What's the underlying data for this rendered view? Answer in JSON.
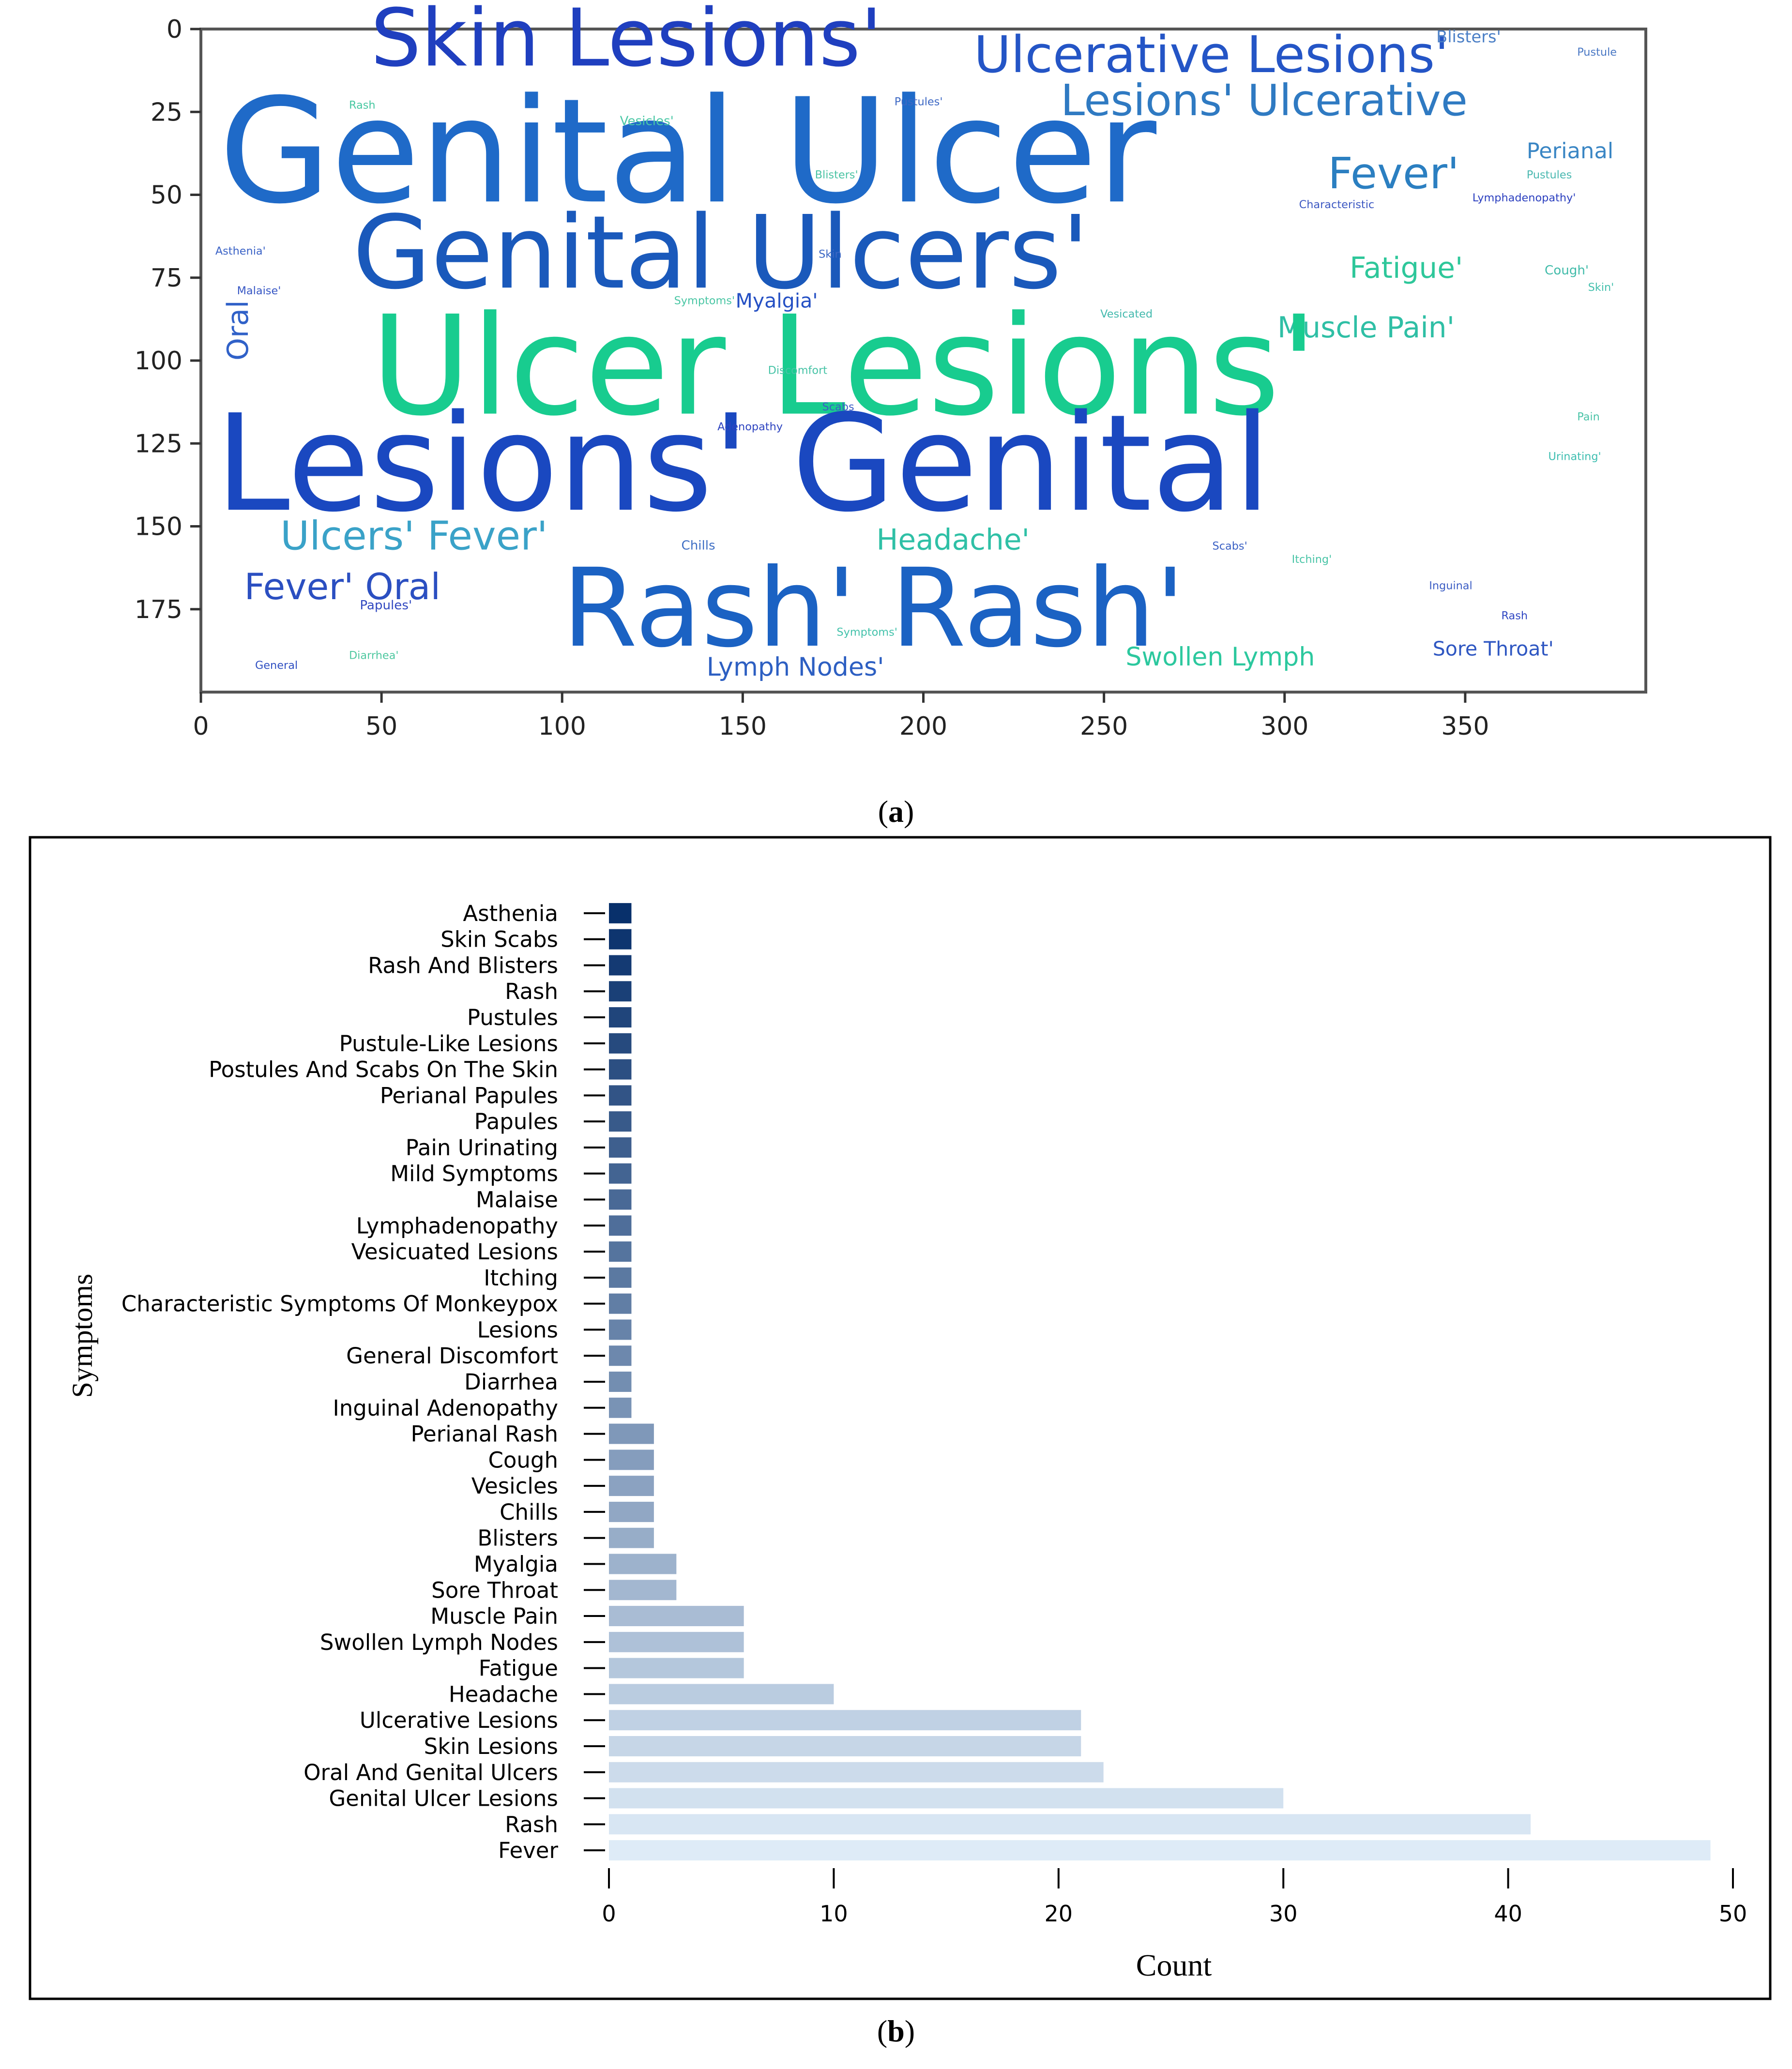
{
  "panel_a": {
    "label": "a",
    "chart_data": {
      "type": "wordcloud",
      "xticks": [
        "0",
        "50",
        "100",
        "150",
        "200",
        "250",
        "300",
        "350"
      ],
      "yticks": [
        "0",
        "25",
        "50",
        "75",
        "100",
        "125",
        "150",
        "175"
      ],
      "xlim": [
        0,
        400
      ],
      "ylim": [
        200,
        0
      ],
      "words": [
        {
          "text": "Skin Lesions'",
          "x": 47,
          "y": 11,
          "size": 22,
          "color": "#1f3fbf",
          "rotate": 0
        },
        {
          "text": "Ulcerative Lesions'",
          "x": 214,
          "y": 13,
          "size": 14,
          "color": "#2455c6",
          "rotate": 0
        },
        {
          "text": "Lesions' Ulcerative",
          "x": 238,
          "y": 26,
          "size": 12,
          "color": "#2f7ac2",
          "rotate": 0
        },
        {
          "text": "Genital Ulcer",
          "x": 5,
          "y": 52,
          "size": 40,
          "color": "#1f6ac8",
          "rotate": 0
        },
        {
          "text": "Fever'",
          "x": 312,
          "y": 48,
          "size": 12,
          "color": "#2b7fc1",
          "rotate": 0
        },
        {
          "text": "Perianal",
          "x": 367,
          "y": 39,
          "size": 6,
          "color": "#3a86c4",
          "rotate": 0
        },
        {
          "text": "Genital Ulcers'",
          "x": 42,
          "y": 78,
          "size": 28,
          "color": "#1a59bb",
          "rotate": 0
        },
        {
          "text": "Fatigue'",
          "x": 318,
          "y": 75,
          "size": 8,
          "color": "#2ec79a",
          "rotate": 0
        },
        {
          "text": "Myalgia'",
          "x": 148,
          "y": 84,
          "size": 5.5,
          "color": "#2550c4",
          "rotate": 0
        },
        {
          "text": "Muscle Pain'",
          "x": 298,
          "y": 93,
          "size": 8,
          "color": "#2fbfa5",
          "rotate": 0
        },
        {
          "text": "Ulcer Lesions'",
          "x": 47,
          "y": 116,
          "size": 38,
          "color": "#18cc8f",
          "rotate": 0
        },
        {
          "text": "Oral",
          "x": 13,
          "y": 100,
          "size": 8,
          "color": "#3061c8",
          "rotate": -90
        },
        {
          "text": "Lesions' Genital",
          "x": 4,
          "y": 145,
          "size": 37,
          "color": "#1a48c0",
          "rotate": 0
        },
        {
          "text": "Ulcers' Fever'",
          "x": 22,
          "y": 157,
          "size": 11,
          "color": "#3aa2c8",
          "rotate": 0
        },
        {
          "text": "Headache'",
          "x": 187,
          "y": 157,
          "size": 8,
          "color": "#2fc0a6",
          "rotate": 0
        },
        {
          "text": "Fever' Oral",
          "x": 12,
          "y": 172,
          "size": 10,
          "color": "#2b4fc1",
          "rotate": 0
        },
        {
          "text": "Rash' Rash'",
          "x": 100,
          "y": 186,
          "size": 30,
          "color": "#1b62c3",
          "rotate": 0
        },
        {
          "text": "Lymph Nodes'",
          "x": 140,
          "y": 195,
          "size": 7,
          "color": "#2d5fc2",
          "rotate": 0
        },
        {
          "text": "Swollen Lymph",
          "x": 256,
          "y": 192,
          "size": 7,
          "color": "#2cc89e",
          "rotate": 0
        },
        {
          "text": "Sore Throat'",
          "x": 341,
          "y": 189,
          "size": 5.5,
          "color": "#2f57c2",
          "rotate": 0
        },
        {
          "text": "Blisters'",
          "x": 342,
          "y": 4,
          "size": 4.5,
          "color": "#4b7fc6",
          "rotate": 0
        },
        {
          "text": "Pustule",
          "x": 381,
          "y": 8,
          "size": 3,
          "color": "#4a78c4",
          "rotate": 0
        },
        {
          "text": "Rash",
          "x": 41,
          "y": 24,
          "size": 3,
          "color": "#45c7a0",
          "rotate": 0
        },
        {
          "text": "Vesicles'",
          "x": 116,
          "y": 29,
          "size": 3.5,
          "color": "#4bc8a6",
          "rotate": 0
        },
        {
          "text": "Pustules'",
          "x": 192,
          "y": 23,
          "size": 3,
          "color": "#3d68c4",
          "rotate": 0
        },
        {
          "text": "Pustules",
          "x": 367,
          "y": 45,
          "size": 3,
          "color": "#4ab8b0",
          "rotate": 0
        },
        {
          "text": "Blisters'",
          "x": 170,
          "y": 45,
          "size": 3,
          "color": "#49c3a3",
          "rotate": 0
        },
        {
          "text": "Characteristic",
          "x": 304,
          "y": 54,
          "size": 3,
          "color": "#3c58c2",
          "rotate": 0
        },
        {
          "text": "Lymphadenopathy'",
          "x": 352,
          "y": 52,
          "size": 3,
          "color": "#2b3fbf",
          "rotate": 0
        },
        {
          "text": "Asthenia'",
          "x": 4,
          "y": 68,
          "size": 3,
          "color": "#3a62c6",
          "rotate": 0
        },
        {
          "text": "Skin",
          "x": 171,
          "y": 69,
          "size": 3,
          "color": "#3c67c4",
          "rotate": 0
        },
        {
          "text": "Cough'",
          "x": 372,
          "y": 74,
          "size": 3.5,
          "color": "#40bba9",
          "rotate": 0
        },
        {
          "text": "Malaise'",
          "x": 10,
          "y": 80,
          "size": 3,
          "color": "#3656c4",
          "rotate": 0
        },
        {
          "text": "Skin'",
          "x": 384,
          "y": 79,
          "size": 3,
          "color": "#44c0ad",
          "rotate": 0
        },
        {
          "text": "Symptoms'",
          "x": 131,
          "y": 83,
          "size": 3,
          "color": "#4ac6a4",
          "rotate": 0
        },
        {
          "text": "Vesicated",
          "x": 249,
          "y": 87,
          "size": 3,
          "color": "#42b9ad",
          "rotate": 0
        },
        {
          "text": "Discomfort",
          "x": 157,
          "y": 104,
          "size": 3,
          "color": "#46c3a6",
          "rotate": 0
        },
        {
          "text": "Scabs",
          "x": 172,
          "y": 115,
          "size": 3,
          "color": "#3d5cc6",
          "rotate": 0
        },
        {
          "text": "Adenopathy",
          "x": 143,
          "y": 121,
          "size": 3,
          "color": "#2e44c0",
          "rotate": 0
        },
        {
          "text": "Pain",
          "x": 381,
          "y": 118,
          "size": 3,
          "color": "#4ac3a7",
          "rotate": 0
        },
        {
          "text": "Urinating'",
          "x": 373,
          "y": 130,
          "size": 3,
          "color": "#3ebeb0",
          "rotate": 0
        },
        {
          "text": "Chills",
          "x": 133,
          "y": 157,
          "size": 3.5,
          "color": "#3f6fc4",
          "rotate": 0
        },
        {
          "text": "Scabs'",
          "x": 280,
          "y": 157,
          "size": 3,
          "color": "#3a60c4",
          "rotate": 0
        },
        {
          "text": "Itching'",
          "x": 302,
          "y": 161,
          "size": 3,
          "color": "#48c4a6",
          "rotate": 0
        },
        {
          "text": "Inguinal",
          "x": 340,
          "y": 169,
          "size": 3,
          "color": "#3c5dc4",
          "rotate": 0
        },
        {
          "text": "Papules'",
          "x": 44,
          "y": 175,
          "size": 3.5,
          "color": "#3048c0",
          "rotate": 0
        },
        {
          "text": "Rash",
          "x": 360,
          "y": 178,
          "size": 3,
          "color": "#2f46c2",
          "rotate": 0
        },
        {
          "text": "Symptoms'",
          "x": 176,
          "y": 183,
          "size": 3,
          "color": "#44c2ab",
          "rotate": 0
        },
        {
          "text": "Diarrhea'",
          "x": 41,
          "y": 190,
          "size": 3,
          "color": "#4fc8a0",
          "rotate": 0
        },
        {
          "text": "General",
          "x": 15,
          "y": 193,
          "size": 3,
          "color": "#3050c2",
          "rotate": 0
        }
      ]
    }
  },
  "panel_b": {
    "label": "b",
    "chart_data": {
      "type": "bar",
      "orientation": "horizontal",
      "xlabel": "Count",
      "ylabel": "Symptoms",
      "xlim": [
        0,
        50
      ],
      "xticks": [
        0,
        10,
        20,
        30,
        40,
        50
      ],
      "categories": [
        "Fever",
        "Rash",
        "Genital Ulcer Lesions",
        "Oral And Genital Ulcers",
        "Skin Lesions",
        "Ulcerative Lesions",
        "Headache",
        "Fatigue",
        "Swollen Lymph Nodes",
        "Muscle Pain",
        "Sore Throat",
        "Myalgia",
        "Blisters",
        "Chills",
        "Vesicles",
        "Cough",
        "Perianal Rash",
        "Inguinal Adenopathy",
        "Diarrhea",
        "General Discomfort",
        "Lesions",
        "Characteristic Symptoms Of Monkeypox",
        "Itching",
        "Vesicuated Lesions",
        "Lymphadenopathy",
        "Malaise",
        "Mild Symptoms",
        "Pain Urinating",
        "Papules",
        "Perianal Papules",
        "Postules And Scabs On The Skin",
        "Pustule-Like Lesions",
        "Pustules",
        "Rash",
        "Rash And Blisters",
        "Skin Scabs",
        "Asthenia"
      ],
      "values": [
        49,
        41,
        30,
        22,
        21,
        21,
        10,
        6,
        6,
        6,
        3,
        3,
        2,
        2,
        2,
        2,
        2,
        1,
        1,
        1,
        1,
        1,
        1,
        1,
        1,
        1,
        1,
        1,
        1,
        1,
        1,
        1,
        1,
        1,
        1,
        1,
        1
      ],
      "colors": {
        "high": "#08306b",
        "low": "#deebf7"
      }
    }
  }
}
